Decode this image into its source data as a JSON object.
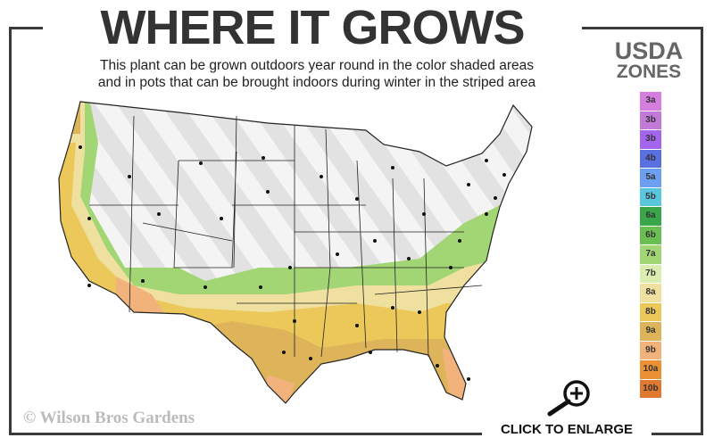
{
  "header": {
    "title": "WHERE IT GROWS",
    "subtitle_line1": "This plant can be grown outdoors year round in the color shaded areas",
    "subtitle_line2": "and in pots that can be brought indoors during winter in the striped area"
  },
  "legend": {
    "title_line1": "USDA",
    "title_line2": "ZONES",
    "zones": [
      {
        "label": "3a",
        "color": "#d67ee0"
      },
      {
        "label": "3b",
        "color": "#c27ad8"
      },
      {
        "label": "3b",
        "color": "#a364ee"
      },
      {
        "label": "4b",
        "color": "#5a6fe0"
      },
      {
        "label": "5a",
        "color": "#6d9ff0"
      },
      {
        "label": "5b",
        "color": "#5ac6de"
      },
      {
        "label": "6a",
        "color": "#3aa64a"
      },
      {
        "label": "6b",
        "color": "#6bbf52"
      },
      {
        "label": "7a",
        "color": "#a2d674"
      },
      {
        "label": "7b",
        "color": "#dcedb2"
      },
      {
        "label": "8a",
        "color": "#efe0a0"
      },
      {
        "label": "8b",
        "color": "#ecc85a"
      },
      {
        "label": "9a",
        "color": "#ddb45a"
      },
      {
        "label": "9b",
        "color": "#f2b27c"
      },
      {
        "label": "10a",
        "color": "#ec9034"
      },
      {
        "label": "10b",
        "color": "#e07830"
      }
    ]
  },
  "footer": {
    "copyright": "© Wilson Bros Gardens",
    "enlarge": "CLICK TO ENLARGE"
  }
}
